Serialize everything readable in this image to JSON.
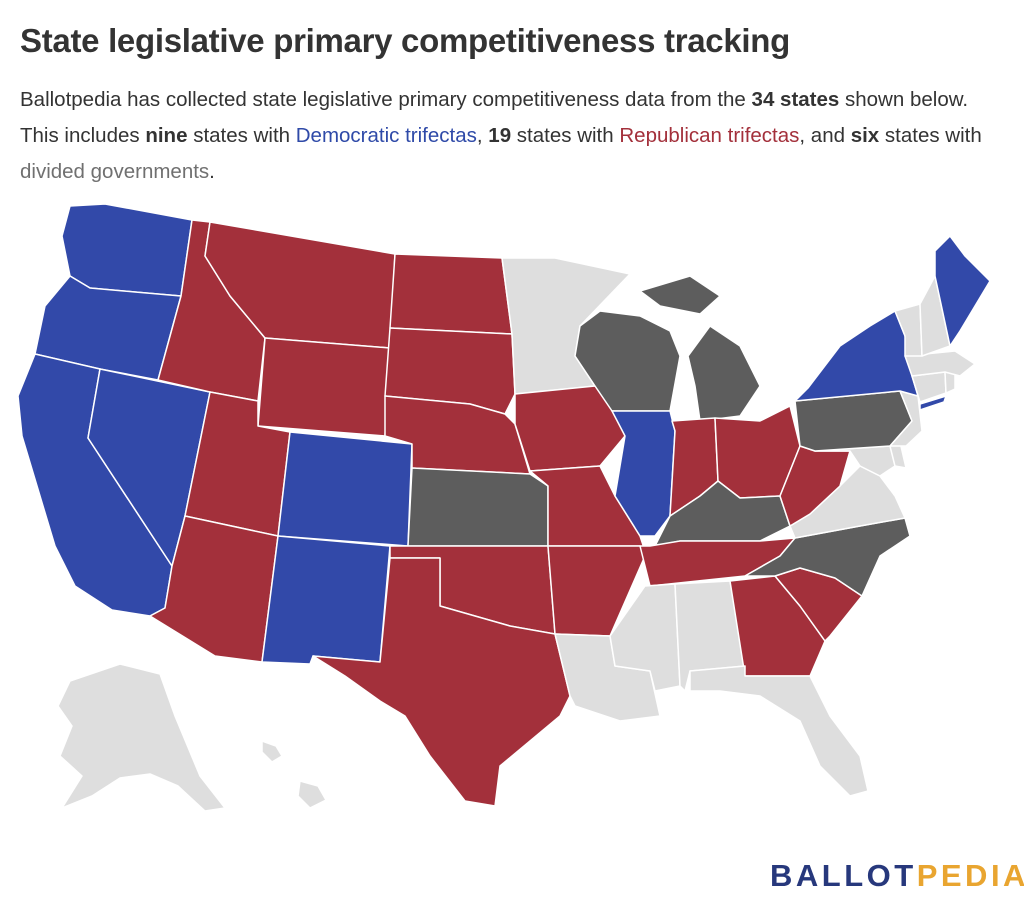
{
  "title": "State legislative primary competitiveness tracking",
  "subtitle": {
    "t1": "Ballotpedia has collected state legislative primary competitiveness data from the ",
    "states_total": "34 states",
    "t2": " shown below. This includes ",
    "dem_count": "nine",
    "t3": " states with ",
    "dem_label": "Democratic trifectas",
    "t4": ", ",
    "rep_count": "19",
    "t5": " states with ",
    "rep_label": "Republican trifectas",
    "t6": ", and ",
    "div_count": "six",
    "t7": " states with ",
    "div_label": "divided governments",
    "t8": "."
  },
  "colors": {
    "democratic_trifecta": "#3249a9",
    "republican_trifecta": "#a3303b",
    "divided_government": "#5d5d5d",
    "not_tracked": "#dedede",
    "border": "#ffffff"
  },
  "map": {
    "democratic_trifecta": [
      "WA",
      "OR",
      "CA",
      "NV",
      "CO",
      "NM",
      "IL",
      "NY",
      "ME"
    ],
    "republican_trifecta": [
      "ID",
      "MT",
      "WY",
      "UT",
      "AZ",
      "ND",
      "SD",
      "NE",
      "OK",
      "TX",
      "IA",
      "MO",
      "AR",
      "TN",
      "IN",
      "OH",
      "WV",
      "GA",
      "SC"
    ],
    "divided_government": [
      "KS",
      "WI",
      "MI",
      "KY",
      "PA",
      "NC"
    ],
    "not_tracked": [
      "MN",
      "LA",
      "MS",
      "AL",
      "FL",
      "VA",
      "MD",
      "DE",
      "NJ",
      "CT",
      "RI",
      "MA",
      "VT",
      "NH",
      "AK",
      "HI"
    ]
  },
  "logo": {
    "part1": "BALLOT",
    "part2": "PEDIA"
  }
}
